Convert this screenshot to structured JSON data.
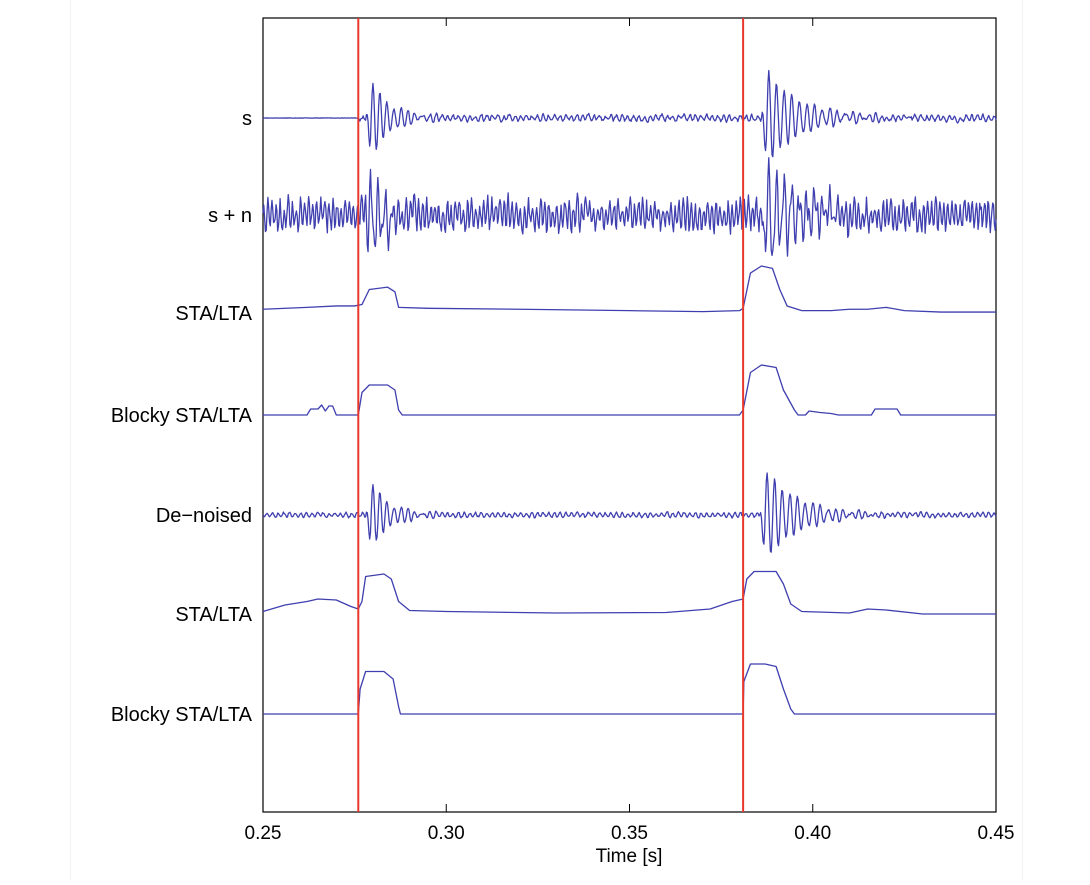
{
  "chart_data": {
    "type": "line",
    "xlabel": "Time [s]",
    "xlim": [
      0.25,
      0.45
    ],
    "xticks": [
      0.25,
      0.3,
      0.35,
      0.4,
      0.45
    ],
    "xtick_labels": [
      "0.25",
      "0.30",
      "0.35",
      "0.40",
      "0.45"
    ],
    "yticks_shown": false,
    "grid": false,
    "line_color": "#3f3faf",
    "marker_color": "#e8372b",
    "vertical_markers": [
      0.276,
      0.381
    ],
    "series": [
      {
        "name": "s",
        "kind": "wave",
        "noise": 0.08,
        "bursts": [
          {
            "t": 0.2795,
            "amp": 1.0,
            "dur": 0.012,
            "freq": 520
          },
          {
            "t": 0.3875,
            "amp": 1.25,
            "dur": 0.02,
            "freq": 480
          }
        ],
        "quiet_before": 0.276,
        "bg_freq": 650,
        "bg_amp": 0.08
      },
      {
        "name": "s + n",
        "kind": "wave",
        "noise": 0.35,
        "bursts": [
          {
            "t": 0.279,
            "amp": 1.05,
            "dur": 0.012,
            "freq": 520
          },
          {
            "t": 0.3875,
            "amp": 1.3,
            "dur": 0.02,
            "freq": 480
          }
        ],
        "quiet_before": 0.25,
        "bg_freq": 900,
        "bg_amp": 0.38
      },
      {
        "name": "STA/LTA",
        "kind": "envelope",
        "baseline": 0.1,
        "knots": [
          [
            0.25,
            0.08
          ],
          [
            0.262,
            0.12
          ],
          [
            0.27,
            0.15
          ],
          [
            0.275,
            0.15
          ],
          [
            0.277,
            0.18
          ],
          [
            0.279,
            0.5
          ],
          [
            0.284,
            0.55
          ],
          [
            0.286,
            0.45
          ],
          [
            0.287,
            0.12
          ],
          [
            0.295,
            0.1
          ],
          [
            0.32,
            0.08
          ],
          [
            0.35,
            0.05
          ],
          [
            0.37,
            0.03
          ],
          [
            0.38,
            0.05
          ],
          [
            0.381,
            0.1
          ],
          [
            0.383,
            0.85
          ],
          [
            0.386,
            1.0
          ],
          [
            0.389,
            0.95
          ],
          [
            0.391,
            0.5
          ],
          [
            0.393,
            0.15
          ],
          [
            0.397,
            0.05
          ],
          [
            0.405,
            0.05
          ],
          [
            0.41,
            0.08
          ],
          [
            0.415,
            0.08
          ],
          [
            0.42,
            0.12
          ],
          [
            0.425,
            0.05
          ],
          [
            0.435,
            0.02
          ],
          [
            0.45,
            0.02
          ]
        ]
      },
      {
        "name": "Blocky STA/LTA",
        "kind": "envelope",
        "baseline": 0,
        "knots": [
          [
            0.25,
            0
          ],
          [
            0.262,
            0
          ],
          [
            0.263,
            0.12
          ],
          [
            0.265,
            0.12
          ],
          [
            0.266,
            0.2
          ],
          [
            0.267,
            0.08
          ],
          [
            0.268,
            0.18
          ],
          [
            0.269,
            0.18
          ],
          [
            0.27,
            0
          ],
          [
            0.276,
            0
          ],
          [
            0.277,
            0.45
          ],
          [
            0.279,
            0.6
          ],
          [
            0.284,
            0.6
          ],
          [
            0.286,
            0.5
          ],
          [
            0.287,
            0.1
          ],
          [
            0.288,
            0
          ],
          [
            0.38,
            0
          ],
          [
            0.381,
            0.1
          ],
          [
            0.383,
            0.85
          ],
          [
            0.386,
            1.0
          ],
          [
            0.39,
            0.95
          ],
          [
            0.392,
            0.5
          ],
          [
            0.395,
            0.1
          ],
          [
            0.396,
            0
          ],
          [
            0.398,
            0
          ],
          [
            0.399,
            0.08
          ],
          [
            0.402,
            0.05
          ],
          [
            0.405,
            0.03
          ],
          [
            0.407,
            0
          ],
          [
            0.416,
            0
          ],
          [
            0.417,
            0.12
          ],
          [
            0.423,
            0.12
          ],
          [
            0.424,
            0
          ],
          [
            0.45,
            0
          ]
        ]
      },
      {
        "name": "De−noised",
        "kind": "wave",
        "noise": 0.04,
        "bursts": [
          {
            "t": 0.2795,
            "amp": 0.85,
            "dur": 0.012,
            "freq": 520
          },
          {
            "t": 0.387,
            "amp": 1.2,
            "dur": 0.02,
            "freq": 480
          }
        ],
        "quiet_before": 0.25,
        "bg_freq": 650,
        "bg_amp": 0.07
      },
      {
        "name": "STA/LTA",
        "kind": "envelope",
        "baseline": 0,
        "knots": [
          [
            0.25,
            0.05
          ],
          [
            0.256,
            0.18
          ],
          [
            0.262,
            0.25
          ],
          [
            0.265,
            0.3
          ],
          [
            0.27,
            0.28
          ],
          [
            0.274,
            0.15
          ],
          [
            0.276,
            0.1
          ],
          [
            0.277,
            0.25
          ],
          [
            0.278,
            0.75
          ],
          [
            0.283,
            0.8
          ],
          [
            0.285,
            0.7
          ],
          [
            0.287,
            0.25
          ],
          [
            0.29,
            0.07
          ],
          [
            0.3,
            0.05
          ],
          [
            0.33,
            0.02
          ],
          [
            0.36,
            0.03
          ],
          [
            0.372,
            0.1
          ],
          [
            0.378,
            0.25
          ],
          [
            0.381,
            0.3
          ],
          [
            0.382,
            0.7
          ],
          [
            0.384,
            0.85
          ],
          [
            0.39,
            0.85
          ],
          [
            0.392,
            0.6
          ],
          [
            0.394,
            0.2
          ],
          [
            0.397,
            0.05
          ],
          [
            0.41,
            0.02
          ],
          [
            0.415,
            0.1
          ],
          [
            0.42,
            0.08
          ],
          [
            0.43,
            0
          ],
          [
            0.45,
            0
          ]
        ]
      },
      {
        "name": "Blocky STA/LTA",
        "kind": "envelope",
        "baseline": 0,
        "knots": [
          [
            0.25,
            0
          ],
          [
            0.276,
            0
          ],
          [
            0.2765,
            0.5
          ],
          [
            0.278,
            0.85
          ],
          [
            0.283,
            0.85
          ],
          [
            0.2855,
            0.7
          ],
          [
            0.287,
            0.15
          ],
          [
            0.2875,
            0
          ],
          [
            0.381,
            0
          ],
          [
            0.3812,
            0.65
          ],
          [
            0.383,
            1.0
          ],
          [
            0.387,
            1.0
          ],
          [
            0.39,
            0.95
          ],
          [
            0.392,
            0.5
          ],
          [
            0.394,
            0.1
          ],
          [
            0.395,
            0
          ],
          [
            0.45,
            0
          ]
        ]
      }
    ]
  }
}
